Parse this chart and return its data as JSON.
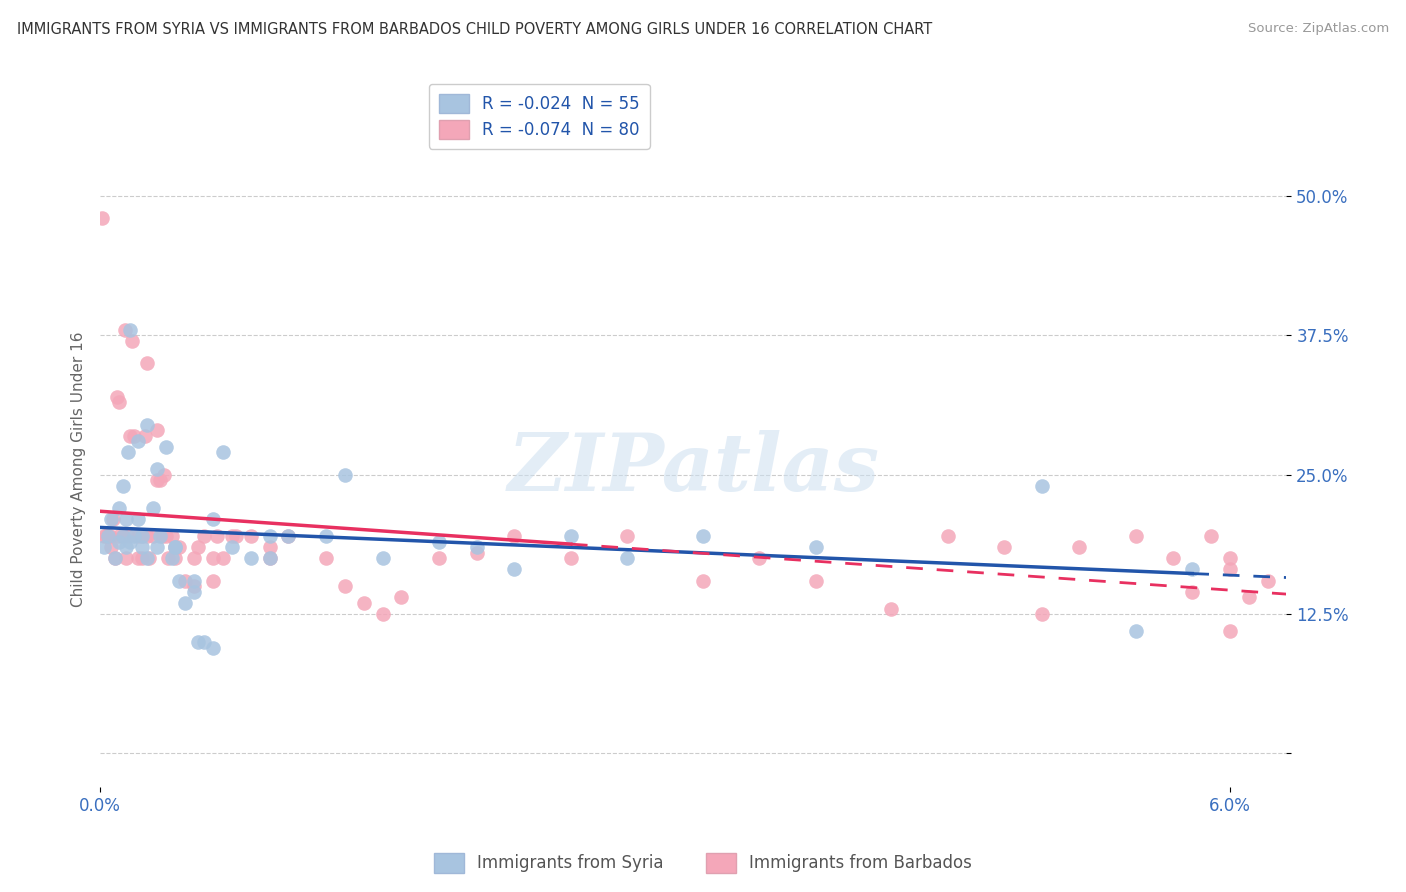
{
  "title": "IMMIGRANTS FROM SYRIA VS IMMIGRANTS FROM BARBADOS CHILD POVERTY AMONG GIRLS UNDER 16 CORRELATION CHART",
  "source": "Source: ZipAtlas.com",
  "ylabel": "Child Poverty Among Girls Under 16",
  "yticks": [
    0.0,
    0.125,
    0.25,
    0.375,
    0.5
  ],
  "ytick_labels": [
    "",
    "12.5%",
    "25.0%",
    "37.5%",
    "50.0%"
  ],
  "xlim": [
    0.0,
    0.063
  ],
  "ylim": [
    -0.03,
    0.54
  ],
  "legend_syria": "R = -0.024  N = 55",
  "legend_barbados": "R = -0.074  N = 80",
  "legend_label_syria": "Immigrants from Syria",
  "legend_label_barbados": "Immigrants from Barbados",
  "color_syria": "#a8c4e0",
  "color_barbados": "#f4a7b9",
  "trendline_syria_color": "#2255aa",
  "trendline_barbados_color": "#e83060",
  "background_color": "#ffffff",
  "syria_x": [
    0.0002,
    0.0004,
    0.0006,
    0.0008,
    0.001,
    0.001,
    0.0012,
    0.0012,
    0.0014,
    0.0014,
    0.0015,
    0.0016,
    0.0016,
    0.0018,
    0.002,
    0.002,
    0.0022,
    0.0022,
    0.0025,
    0.0025,
    0.0028,
    0.003,
    0.003,
    0.0032,
    0.0035,
    0.0038,
    0.004,
    0.004,
    0.0042,
    0.0045,
    0.005,
    0.005,
    0.0052,
    0.0055,
    0.006,
    0.006,
    0.0065,
    0.007,
    0.008,
    0.009,
    0.009,
    0.01,
    0.012,
    0.013,
    0.015,
    0.018,
    0.02,
    0.022,
    0.025,
    0.028,
    0.032,
    0.038,
    0.05,
    0.055,
    0.058
  ],
  "syria_y": [
    0.185,
    0.195,
    0.21,
    0.175,
    0.22,
    0.19,
    0.24,
    0.195,
    0.21,
    0.185,
    0.27,
    0.38,
    0.19,
    0.195,
    0.28,
    0.21,
    0.195,
    0.185,
    0.295,
    0.175,
    0.22,
    0.255,
    0.185,
    0.195,
    0.275,
    0.175,
    0.185,
    0.185,
    0.155,
    0.135,
    0.155,
    0.145,
    0.1,
    0.1,
    0.21,
    0.095,
    0.27,
    0.185,
    0.175,
    0.195,
    0.175,
    0.195,
    0.195,
    0.25,
    0.175,
    0.19,
    0.185,
    0.165,
    0.195,
    0.175,
    0.195,
    0.185,
    0.24,
    0.11,
    0.165
  ],
  "barbados_x": [
    0.0001,
    0.0002,
    0.0003,
    0.0004,
    0.0005,
    0.0006,
    0.0007,
    0.0008,
    0.0009,
    0.001,
    0.001,
    0.0012,
    0.0013,
    0.0014,
    0.0015,
    0.0016,
    0.0017,
    0.0018,
    0.002,
    0.002,
    0.0022,
    0.0022,
    0.0024,
    0.0025,
    0.0025,
    0.0026,
    0.0028,
    0.003,
    0.003,
    0.0032,
    0.0033,
    0.0034,
    0.0035,
    0.0036,
    0.0038,
    0.004,
    0.004,
    0.0042,
    0.0045,
    0.005,
    0.005,
    0.0052,
    0.0055,
    0.006,
    0.006,
    0.0062,
    0.0065,
    0.007,
    0.0072,
    0.008,
    0.009,
    0.009,
    0.01,
    0.012,
    0.013,
    0.014,
    0.015,
    0.016,
    0.018,
    0.02,
    0.022,
    0.025,
    0.028,
    0.032,
    0.035,
    0.038,
    0.042,
    0.045,
    0.048,
    0.05,
    0.052,
    0.055,
    0.057,
    0.058,
    0.059,
    0.06,
    0.06,
    0.06,
    0.061,
    0.062
  ],
  "barbados_y": [
    0.48,
    0.195,
    0.195,
    0.195,
    0.195,
    0.185,
    0.21,
    0.175,
    0.32,
    0.315,
    0.195,
    0.195,
    0.38,
    0.175,
    0.195,
    0.285,
    0.37,
    0.285,
    0.195,
    0.175,
    0.195,
    0.175,
    0.285,
    0.195,
    0.35,
    0.175,
    0.195,
    0.245,
    0.29,
    0.245,
    0.195,
    0.25,
    0.195,
    0.175,
    0.195,
    0.185,
    0.175,
    0.185,
    0.155,
    0.175,
    0.15,
    0.185,
    0.195,
    0.155,
    0.175,
    0.195,
    0.175,
    0.195,
    0.195,
    0.195,
    0.185,
    0.175,
    0.195,
    0.175,
    0.15,
    0.135,
    0.125,
    0.14,
    0.175,
    0.18,
    0.195,
    0.175,
    0.195,
    0.155,
    0.175,
    0.155,
    0.13,
    0.195,
    0.185,
    0.125,
    0.185,
    0.195,
    0.175,
    0.145,
    0.195,
    0.175,
    0.165,
    0.11,
    0.14,
    0.155
  ]
}
